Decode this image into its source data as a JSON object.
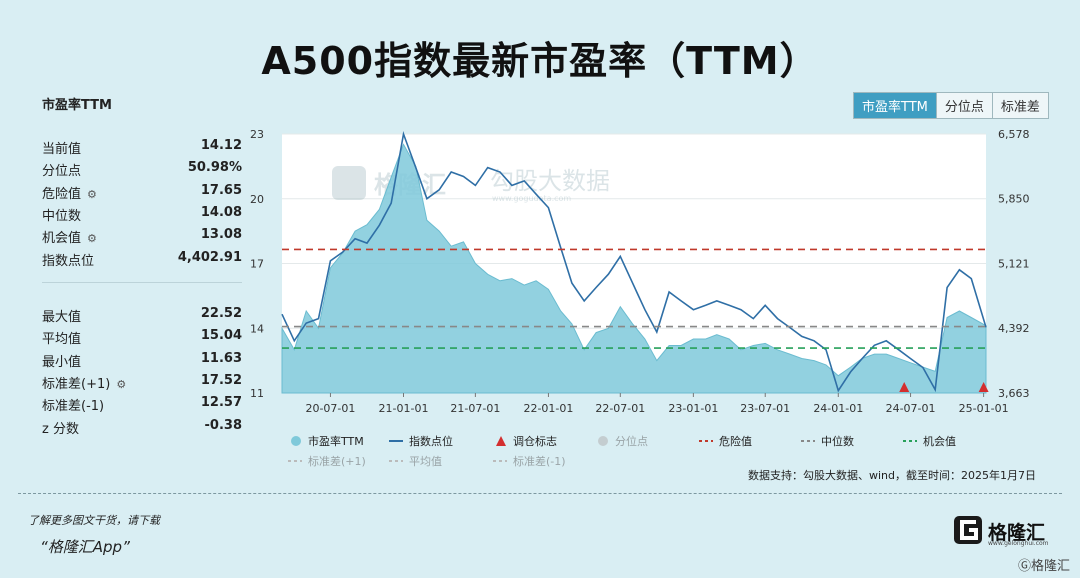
{
  "title": "A500指数最新市盈率（TTM）",
  "stats": {
    "heading": "市盈率TTM",
    "group1": [
      {
        "label": "当前值",
        "value": "14.12",
        "gear": false
      },
      {
        "label": "分位点",
        "value": "50.98%",
        "gear": false
      },
      {
        "label": "危险值",
        "value": "17.65",
        "gear": true
      },
      {
        "label": "中位数",
        "value": "14.08",
        "gear": false
      },
      {
        "label": "机会值",
        "value": "13.08",
        "gear": true
      },
      {
        "label": "指数点位",
        "value": "4,402.91",
        "gear": false
      }
    ],
    "group2": [
      {
        "label": "最大值",
        "value": "22.52",
        "gear": false
      },
      {
        "label": "平均值",
        "value": "15.04",
        "gear": false
      },
      {
        "label": "最小值",
        "value": "11.63",
        "gear": false
      },
      {
        "label": "标准差(+1)",
        "value": "17.52",
        "gear": true
      },
      {
        "label": "标准差(-1)",
        "value": "12.57",
        "gear": false
      },
      {
        "label": "z 分数",
        "value": "-0.38",
        "gear": false
      }
    ],
    "gear_icon": "⚙"
  },
  "tabs": [
    {
      "label": "市盈率TTM",
      "active": true
    },
    {
      "label": "分位点",
      "active": false
    },
    {
      "label": "标准差",
      "active": false
    }
  ],
  "watermark": {
    "brand": "格隆汇",
    "text": "勾股大数据",
    "url": "www.gogudata.com"
  },
  "chart_data": {
    "type": "area",
    "x_ticks": [
      "20-07-01",
      "21-01-01",
      "21-07-01",
      "22-01-01",
      "22-07-01",
      "23-01-01",
      "23-07-01",
      "24-01-01",
      "24-07-01",
      "25-01-01"
    ],
    "y_left": {
      "ticks": [
        "11",
        "14",
        "17",
        "20",
        "23"
      ],
      "min": 11,
      "max": 23
    },
    "y_right": {
      "ticks": [
        "3,663",
        "4,392",
        "5,121",
        "5,850",
        "6,578"
      ],
      "min": 3663,
      "max": 6578
    },
    "x_range": [
      "2020-03-01",
      "2025-01-07"
    ],
    "series": [
      {
        "name": "市盈率TTM",
        "kind": "area",
        "color": "#7fc9da",
        "x": [
          "2020-03-01",
          "2020-04-01",
          "2020-05-01",
          "2020-06-01",
          "2020-07-01",
          "2020-08-01",
          "2020-09-01",
          "2020-10-01",
          "2020-11-01",
          "2020-12-01",
          "2021-01-01",
          "2021-02-01",
          "2021-03-01",
          "2021-04-01",
          "2021-05-01",
          "2021-06-01",
          "2021-07-01",
          "2021-08-01",
          "2021-09-01",
          "2021-10-01",
          "2021-11-01",
          "2021-12-01",
          "2022-01-01",
          "2022-02-01",
          "2022-03-01",
          "2022-04-01",
          "2022-05-01",
          "2022-06-01",
          "2022-07-01",
          "2022-08-01",
          "2022-09-01",
          "2022-10-01",
          "2022-11-01",
          "2022-12-01",
          "2023-01-01",
          "2023-02-01",
          "2023-03-01",
          "2023-04-01",
          "2023-05-01",
          "2023-06-01",
          "2023-07-01",
          "2023-08-01",
          "2023-09-01",
          "2023-10-01",
          "2023-11-01",
          "2023-12-01",
          "2024-01-01",
          "2024-02-01",
          "2024-03-01",
          "2024-04-01",
          "2024-05-01",
          "2024-06-01",
          "2024-07-01",
          "2024-08-01",
          "2024-09-01",
          "2024-10-01",
          "2024-11-01",
          "2024-12-01",
          "2025-01-07"
        ],
        "values": [
          14.0,
          13.0,
          14.8,
          14.0,
          16.8,
          17.5,
          18.5,
          18.8,
          19.5,
          21.0,
          22.52,
          21.5,
          19.0,
          18.5,
          17.8,
          18.0,
          17.0,
          16.5,
          16.2,
          16.3,
          16.0,
          16.2,
          15.8,
          14.8,
          14.2,
          13.0,
          13.8,
          14.0,
          15.0,
          14.2,
          13.5,
          12.5,
          13.2,
          13.2,
          13.5,
          13.5,
          13.7,
          13.5,
          13.0,
          13.2,
          13.3,
          13.0,
          12.8,
          12.6,
          12.5,
          12.3,
          11.8,
          12.2,
          12.6,
          12.8,
          12.8,
          12.6,
          12.4,
          12.2,
          12.0,
          14.5,
          14.8,
          14.5,
          14.12
        ]
      },
      {
        "name": "指数点位",
        "kind": "line",
        "color": "#2f6fa6",
        "x": [
          "2020-03-01",
          "2020-04-01",
          "2020-05-01",
          "2020-06-01",
          "2020-07-01",
          "2020-08-01",
          "2020-09-01",
          "2020-10-01",
          "2020-11-01",
          "2020-12-01",
          "2021-01-01",
          "2021-02-01",
          "2021-03-01",
          "2021-04-01",
          "2021-05-01",
          "2021-06-01",
          "2021-07-01",
          "2021-08-01",
          "2021-09-01",
          "2021-10-01",
          "2021-11-01",
          "2021-12-01",
          "2022-01-01",
          "2022-02-01",
          "2022-03-01",
          "2022-04-01",
          "2022-05-01",
          "2022-06-01",
          "2022-07-01",
          "2022-08-01",
          "2022-09-01",
          "2022-10-01",
          "2022-11-01",
          "2022-12-01",
          "2023-01-01",
          "2023-02-01",
          "2023-03-01",
          "2023-04-01",
          "2023-05-01",
          "2023-06-01",
          "2023-07-01",
          "2023-08-01",
          "2023-09-01",
          "2023-10-01",
          "2023-11-01",
          "2023-12-01",
          "2024-01-01",
          "2024-02-01",
          "2024-03-01",
          "2024-04-01",
          "2024-05-01",
          "2024-06-01",
          "2024-07-01",
          "2024-08-01",
          "2024-09-01",
          "2024-10-01",
          "2024-11-01",
          "2024-12-01",
          "2025-01-07"
        ],
        "values": [
          4550,
          4250,
          4450,
          4500,
          5150,
          5250,
          5400,
          5350,
          5550,
          5800,
          6578,
          6200,
          5850,
          5950,
          6150,
          6100,
          6000,
          6200,
          6150,
          6000,
          6050,
          5900,
          5750,
          5300,
          4900,
          4700,
          4850,
          5000,
          5200,
          4900,
          4600,
          4350,
          4800,
          4700,
          4600,
          4650,
          4700,
          4650,
          4600,
          4500,
          4650,
          4500,
          4400,
          4300,
          4250,
          4150,
          3690,
          3900,
          4050,
          4200,
          4250,
          4150,
          4050,
          3950,
          3700,
          4850,
          5050,
          4950,
          4403
        ]
      }
    ],
    "reference_lines": [
      {
        "name": "危险值",
        "value": 17.65,
        "axis": "left",
        "color": "#c0392b",
        "style": "dashed"
      },
      {
        "name": "中位数",
        "value": 14.08,
        "axis": "left",
        "color": "#888888",
        "style": "dashed"
      },
      {
        "name": "机会值",
        "value": 13.08,
        "axis": "left",
        "color": "#27a05a",
        "style": "dashed"
      }
    ],
    "markers": {
      "name": "调仓标志",
      "color": "#d32f2f",
      "x": [
        "2024-06-15",
        "2025-01-01"
      ]
    },
    "legend": {
      "placement": "bottom",
      "items": [
        {
          "label": "市盈率TTM",
          "kind": "dot",
          "color": "#7fc9da"
        },
        {
          "label": "指数点位",
          "kind": "line",
          "color": "#2f6fa6"
        },
        {
          "label": "调仓标志",
          "kind": "triangle",
          "color": "#d32f2f"
        },
        {
          "label": "分位点",
          "kind": "dot",
          "color": "#c4cdd0",
          "muted": true
        },
        {
          "label": "危险值",
          "kind": "dash",
          "color": "#c0392b"
        },
        {
          "label": "中位数",
          "kind": "dash",
          "color": "#888888"
        },
        {
          "label": "机会值",
          "kind": "dash",
          "color": "#27a05a"
        },
        {
          "label": "标准差(+1)",
          "kind": "dash",
          "color": "#bbbbbb",
          "muted": true
        },
        {
          "label": "平均值",
          "kind": "dash",
          "color": "#bbbbbb",
          "muted": true
        },
        {
          "label": "标准差(-1)",
          "kind": "dash",
          "color": "#bbbbbb",
          "muted": true
        }
      ]
    }
  },
  "source": "数据支持：勾股大数据、wind，截至时间：2025年1月7日",
  "footer": {
    "line1": "了解更多图文干货，请下载",
    "line2": "“格隆汇App”",
    "brand": "格隆汇",
    "brand_url": "www.gelonghui.com",
    "bottom_mark": "Ⓖ格隆汇"
  }
}
